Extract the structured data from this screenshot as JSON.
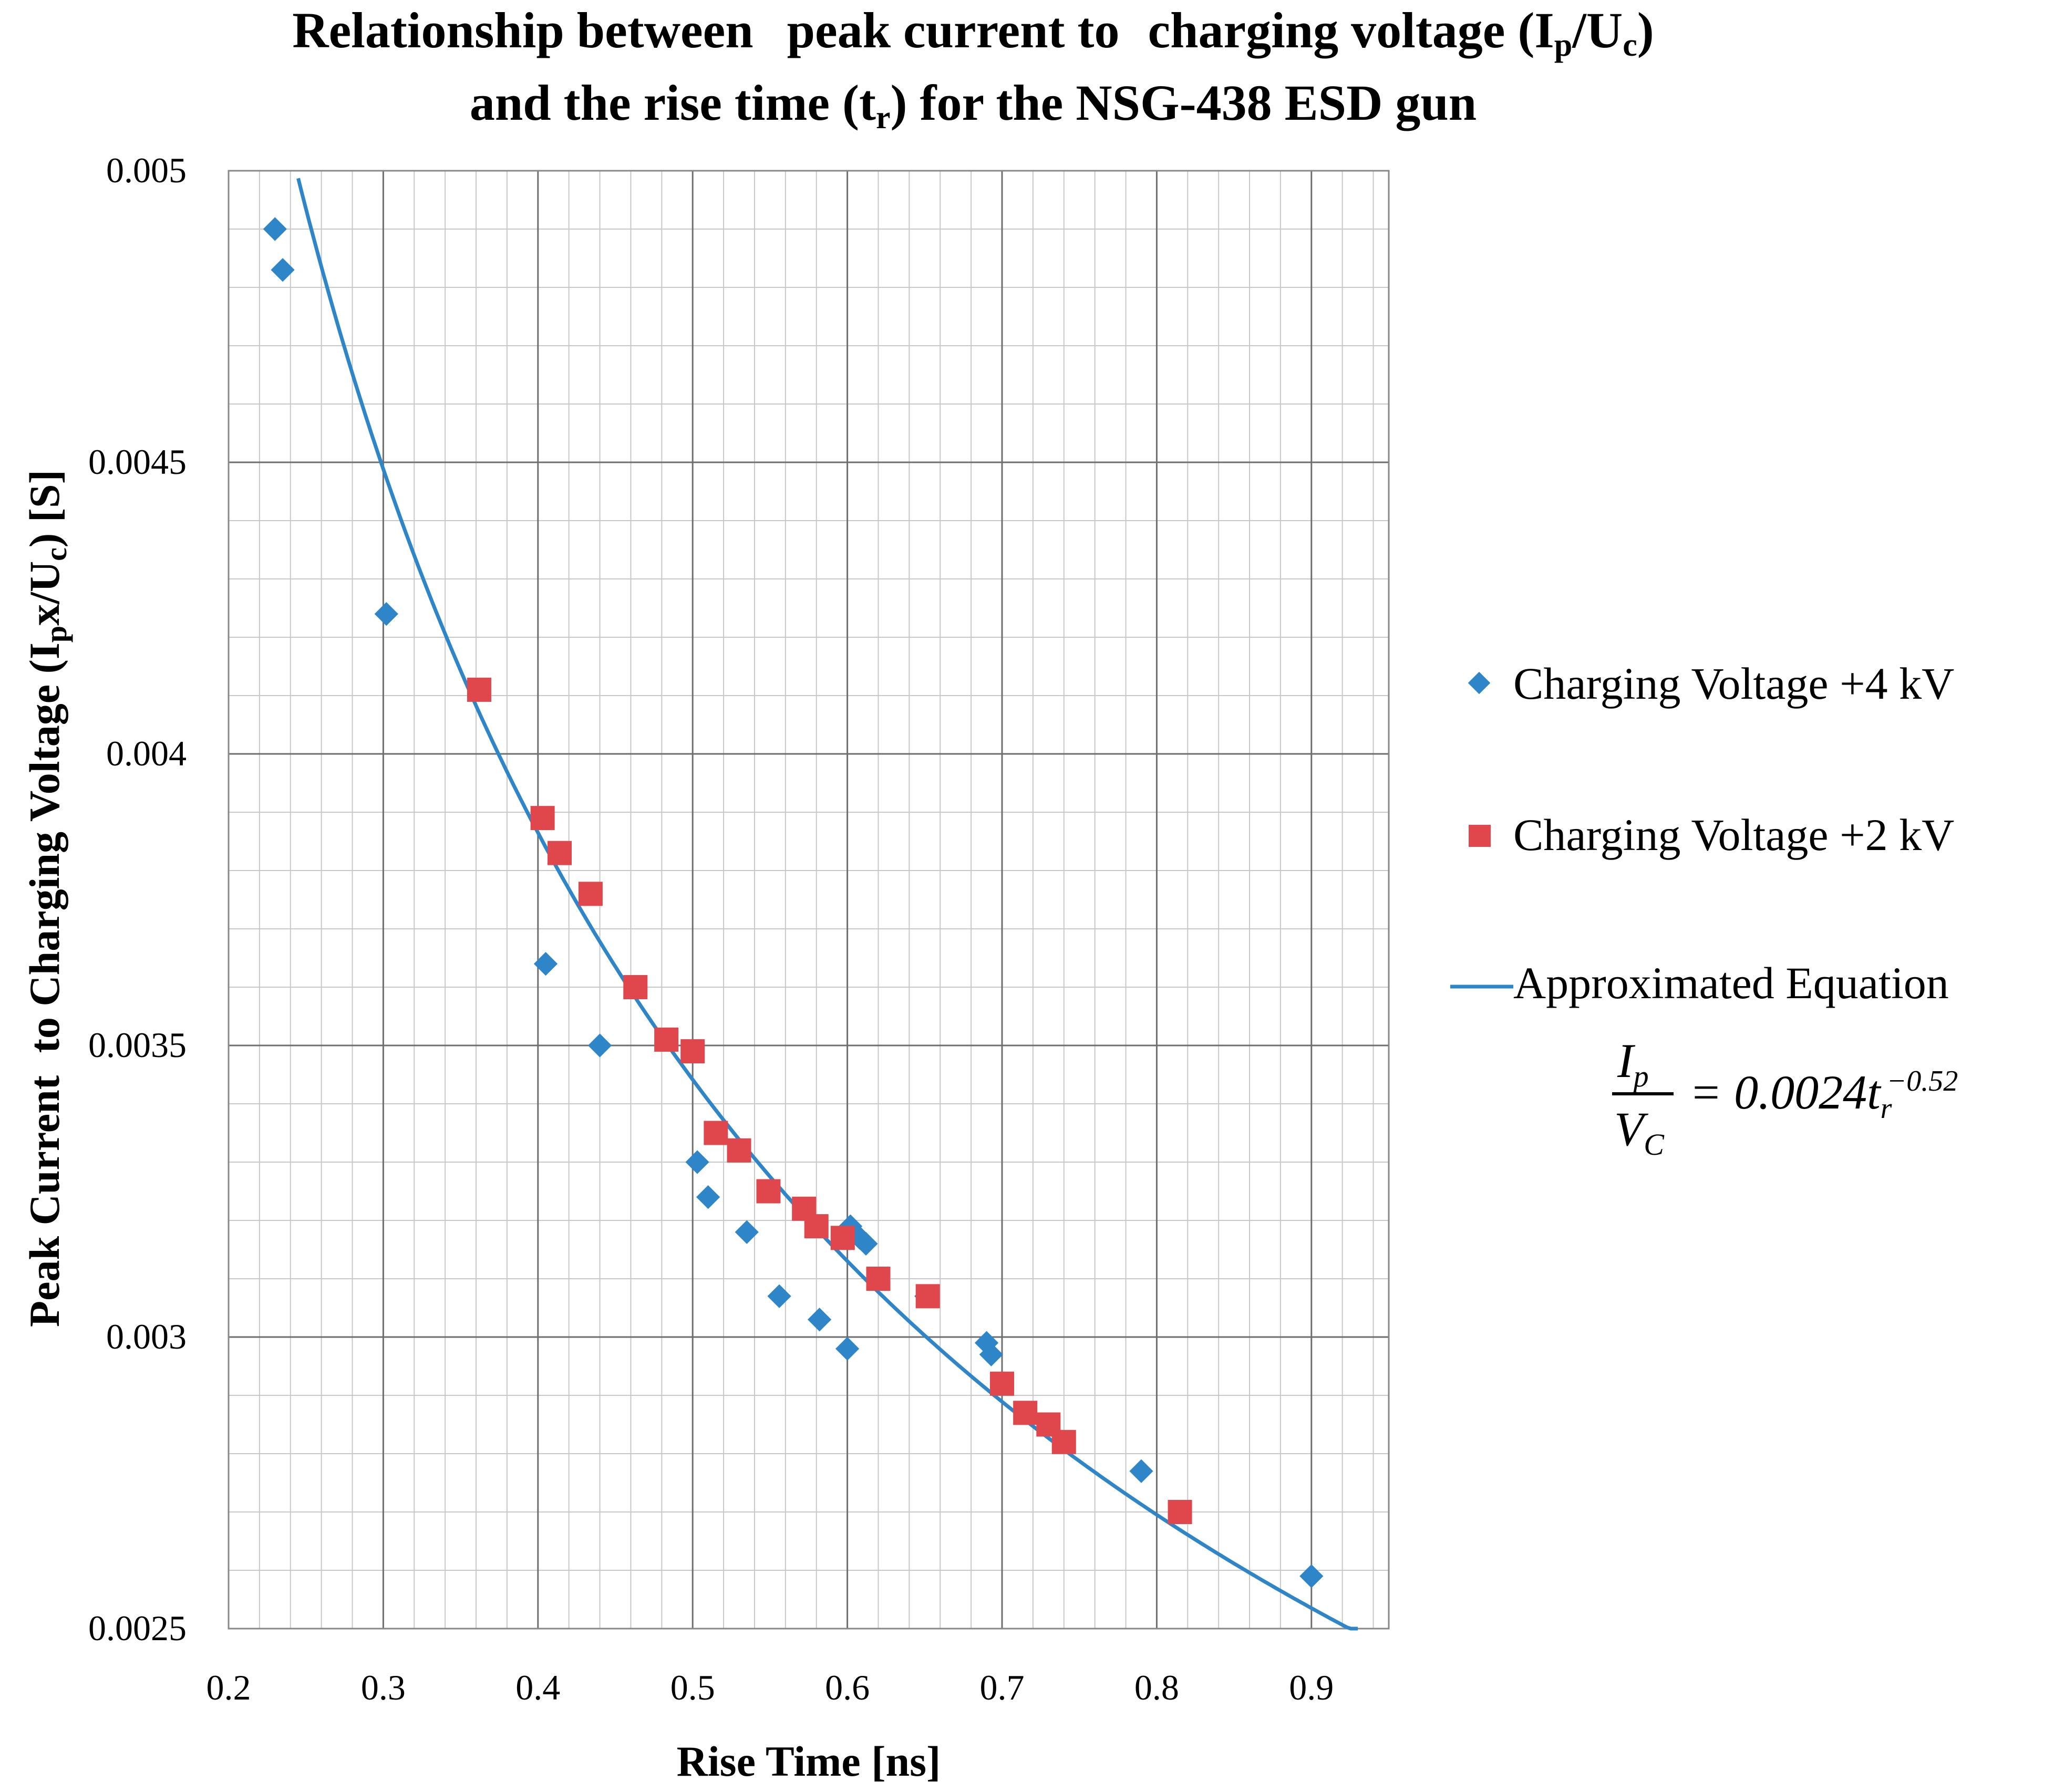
{
  "chart_data": {
    "type": "scatter",
    "title_line1": "Relationship between peak current to charging voltage (Ip/Uc)",
    "title_line1_parts": {
      "a": "Relationship between",
      "b": "peak current to",
      "c": "charging voltage (I",
      "c_sub": "p",
      "d": "/U",
      "d_sub": "c",
      "e": ")"
    },
    "title_line2_parts": {
      "a": "and the rise time (t",
      "a_sub": "r",
      "b": ") for the NSG-438 ESD gun"
    },
    "xlabel": "Rise Time [ns]",
    "ylabel_parts": {
      "a": "Peak Current",
      "b": "to Charging Voltage (I",
      "b_sub": "p",
      "c": "x/U",
      "c_sub": "c",
      "d": ") [S]"
    },
    "xlim": [
      0.2,
      0.95
    ],
    "ylim": [
      0.0025,
      0.005
    ],
    "x_ticks": [
      "0.2",
      "0.3",
      "0.4",
      "0.5",
      "0.6",
      "0.7",
      "0.8",
      "0.9"
    ],
    "x_tick_values": [
      0.2,
      0.3,
      0.4,
      0.5,
      0.6,
      0.7,
      0.8,
      0.9
    ],
    "y_ticks": [
      "0.0025",
      "0.003",
      "0.0035",
      "0.004",
      "0.0045",
      "0.005"
    ],
    "y_tick_values": [
      0.0025,
      0.003,
      0.0035,
      0.004,
      0.0045,
      0.005
    ],
    "x_minor_step": 0.02,
    "y_minor_step": 0.0001,
    "series": [
      {
        "name": "Charging Voltage +4 kV",
        "marker": "diamond",
        "color": "#2E86C8",
        "points": [
          [
            0.23,
            0.0049
          ],
          [
            0.235,
            0.00483
          ],
          [
            0.302,
            0.00424
          ],
          [
            0.405,
            0.00364
          ],
          [
            0.44,
            0.0035
          ],
          [
            0.503,
            0.0033
          ],
          [
            0.51,
            0.00324
          ],
          [
            0.535,
            0.00318
          ],
          [
            0.556,
            0.00307
          ],
          [
            0.582,
            0.00303
          ],
          [
            0.6,
            0.00298
          ],
          [
            0.602,
            0.00319
          ],
          [
            0.608,
            0.00317
          ],
          [
            0.612,
            0.00316
          ],
          [
            0.651,
            0.00307
          ],
          [
            0.69,
            0.00299
          ],
          [
            0.693,
            0.00297
          ],
          [
            0.79,
            0.00277
          ],
          [
            0.9,
            0.00259
          ]
        ]
      },
      {
        "name": "Charging Voltage +2 kV",
        "marker": "square",
        "color": "#E0474C",
        "points": [
          [
            0.362,
            0.00411
          ],
          [
            0.403,
            0.00389
          ],
          [
            0.414,
            0.00383
          ],
          [
            0.434,
            0.00376
          ],
          [
            0.463,
            0.0036
          ],
          [
            0.483,
            0.00351
          ],
          [
            0.5,
            0.00349
          ],
          [
            0.515,
            0.00335
          ],
          [
            0.53,
            0.00332
          ],
          [
            0.549,
            0.00325
          ],
          [
            0.572,
            0.00322
          ],
          [
            0.58,
            0.00319
          ],
          [
            0.597,
            0.00317
          ],
          [
            0.62,
            0.0031
          ],
          [
            0.652,
            0.00307
          ],
          [
            0.7,
            0.00292
          ],
          [
            0.715,
            0.00287
          ],
          [
            0.73,
            0.00285
          ],
          [
            0.74,
            0.00282
          ],
          [
            0.815,
            0.0027
          ]
        ]
      },
      {
        "name": "Approximated Equation",
        "marker": "line",
        "color": "#2E86C8",
        "equation": "Ip/Vc = 0.0024 tr^-0.52",
        "coefficient": 0.0024,
        "exponent": -0.52,
        "x_range": [
          0.245,
          0.93
        ]
      }
    ],
    "legend": {
      "position": "right",
      "entries": [
        "Charging Voltage +4 kV",
        "Charging Voltage +2 kV",
        "Approximated Equation"
      ],
      "equation_num": "I",
      "equation_num_sub": "p",
      "equation_den": "V",
      "equation_den_sub": "C",
      "equation_rhs": "= 0.0024t",
      "equation_rhs_sub": "r",
      "equation_exp": "−0.52"
    },
    "grid": true
  }
}
